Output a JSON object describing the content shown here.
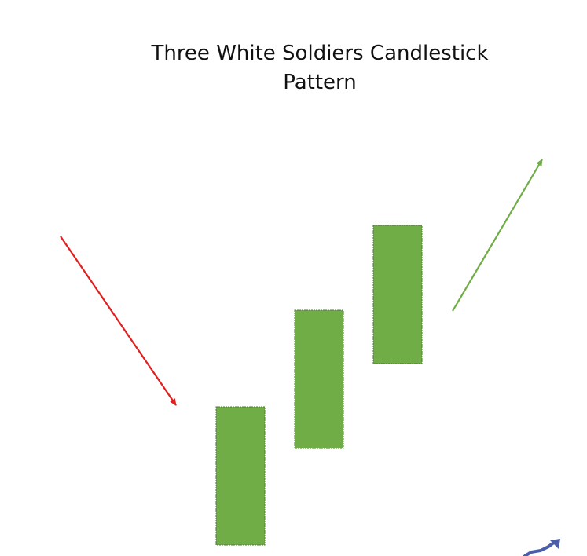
{
  "title": "Three White Soldiers Candlestick\nPattern",
  "colors": {
    "candle_fill": "#70AD47",
    "candle_stroke": "#4E7A31",
    "downtrend_arrow": "#E01F1F",
    "uptrend_arrow": "#70AD47",
    "logo": "#4A5FA8"
  },
  "elements": {
    "downtrend_arrow": "red-arrow-down-right",
    "uptrend_arrow": "green-arrow-up-right",
    "candles": [
      "bullish-candle-1",
      "bullish-candle-2",
      "bullish-candle-3"
    ],
    "corner_logo": "trend-arrow-logo-icon"
  }
}
